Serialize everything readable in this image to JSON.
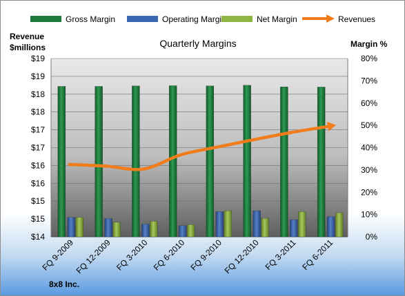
{
  "chart_data": {
    "type": "bar",
    "title": "Quarterly Margins",
    "left_axis_label": [
      "Revenue",
      "$millions"
    ],
    "right_axis_label": "Margin %",
    "footer": "8x8 Inc.",
    "categories": [
      "FQ 9-2009",
      "FQ 12-2009",
      "FQ 3-2010",
      "FQ 6-2010",
      "FQ 9-2010",
      "FQ 12-2010",
      "FQ 3-2011",
      "FQ 6-2011"
    ],
    "left_ticks": [
      "$14",
      "$15",
      "$15",
      "$16",
      "$16",
      "$17",
      "$17",
      "$18",
      "$18",
      "$19",
      "$19"
    ],
    "left_ylim": [
      14,
      19
    ],
    "right_ticks": [
      "0%",
      "10%",
      "20%",
      "30%",
      "40%",
      "50%",
      "60%",
      "70%",
      "80%"
    ],
    "right_ylim": [
      0,
      80
    ],
    "legend_position": "top",
    "series": [
      {
        "name": "Gross Margin",
        "type": "bar",
        "axis": "right",
        "color": "#1e7a3c",
        "values": [
          67.5,
          67.5,
          67.7,
          67.8,
          67.7,
          68.0,
          67.3,
          67.2
        ]
      },
      {
        "name": "Operating Margin",
        "type": "bar",
        "axis": "right",
        "color": "#3b66b0",
        "values": [
          8.7,
          8.2,
          5.7,
          5.0,
          11.3,
          11.7,
          7.7,
          9.0
        ]
      },
      {
        "name": "Net Margin",
        "type": "bar",
        "axis": "right",
        "color": "#8fb542",
        "values": [
          8.7,
          6.5,
          7.0,
          5.5,
          11.7,
          8.3,
          11.3,
          10.8
        ]
      },
      {
        "name": "Revenues",
        "type": "line",
        "axis": "left",
        "color": "#f07c1c",
        "values": [
          16.03,
          15.98,
          15.9,
          16.3,
          16.52,
          16.73,
          16.93,
          17.1
        ]
      }
    ]
  }
}
